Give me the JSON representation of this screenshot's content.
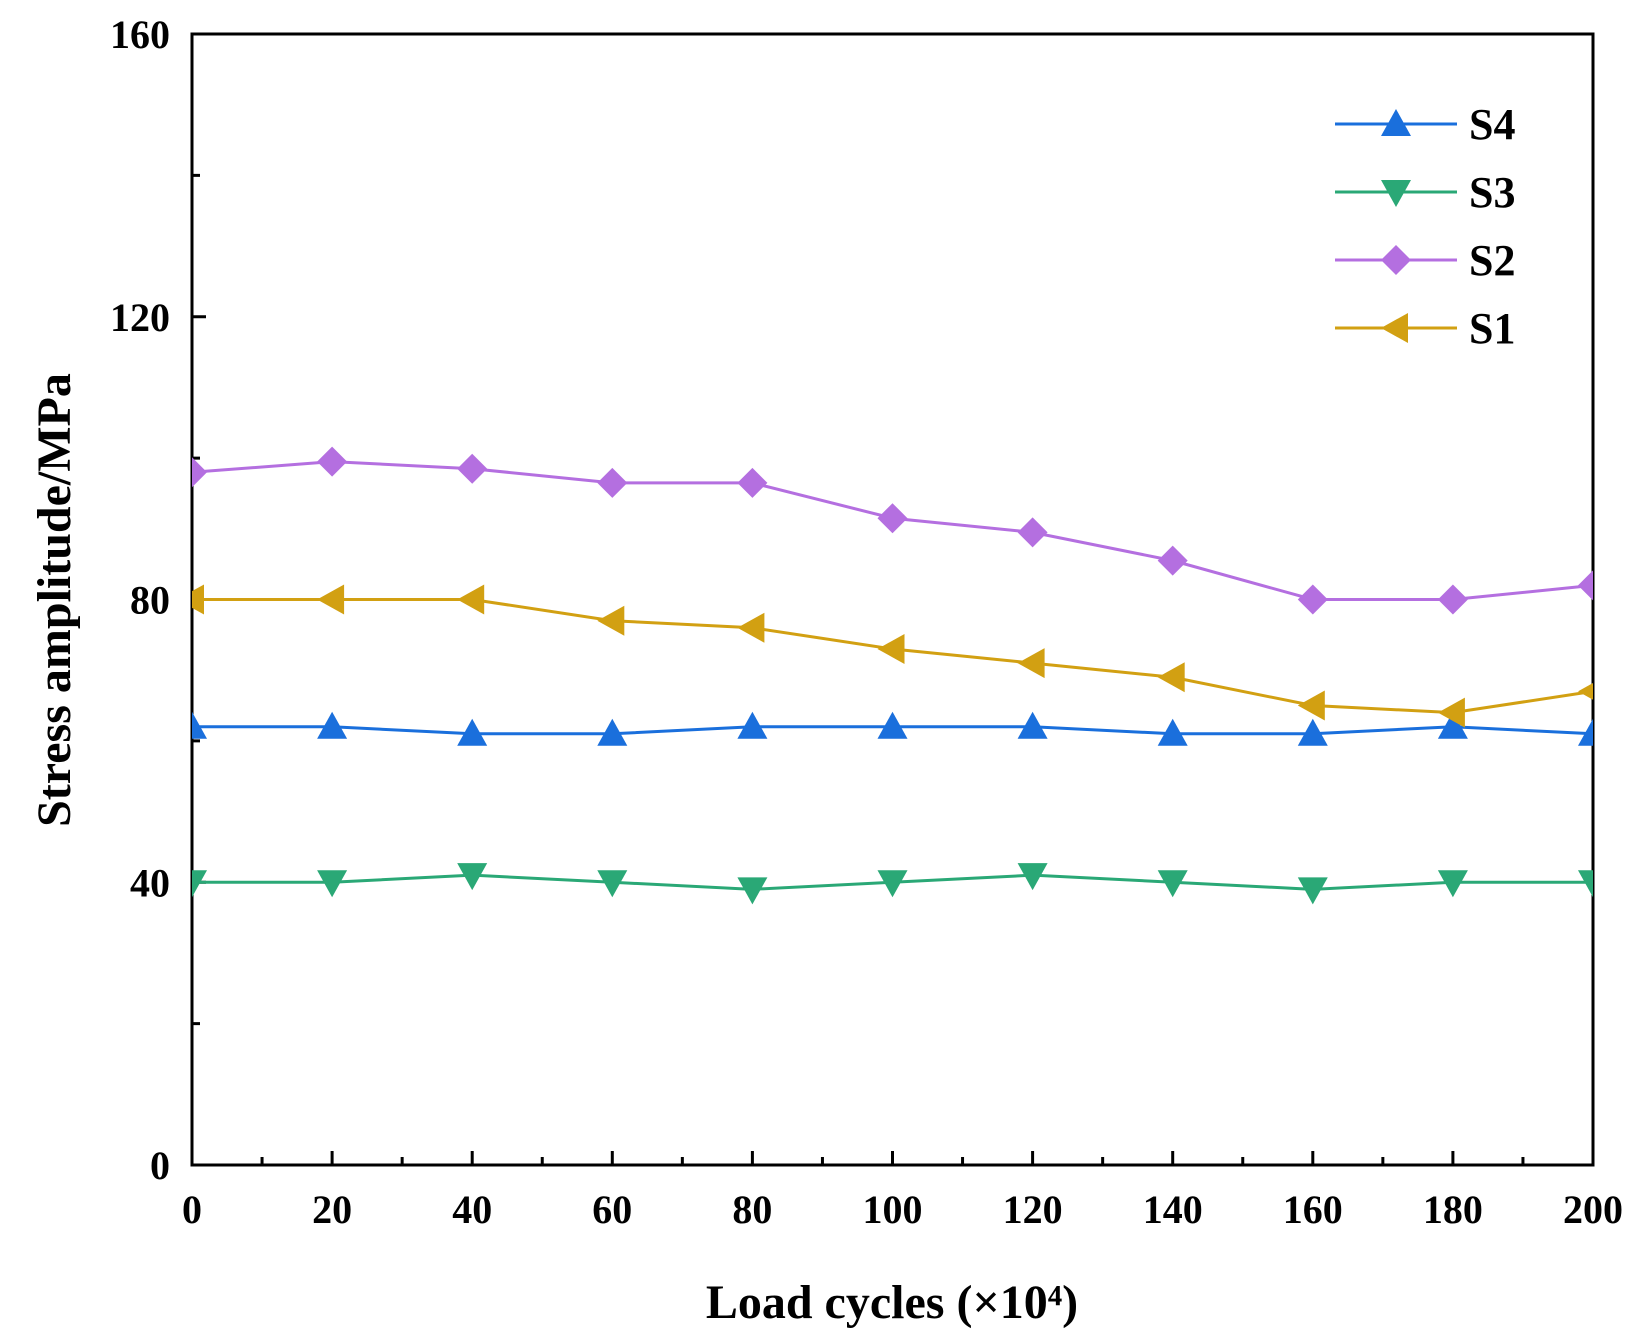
{
  "chart_data": {
    "type": "line",
    "title": "",
    "xlabel": "Load cycles (×10⁴)",
    "ylabel": "Stress amplitude/MPa",
    "xlim": [
      0,
      200
    ],
    "ylim": [
      0,
      160
    ],
    "xticks": [
      0,
      20,
      40,
      60,
      80,
      100,
      120,
      140,
      160,
      180,
      200
    ],
    "yticks": [
      0,
      40,
      80,
      120,
      160
    ],
    "x": [
      0,
      20,
      40,
      60,
      80,
      100,
      120,
      140,
      160,
      180,
      200
    ],
    "legend_position": "top-right",
    "series": [
      {
        "name": "S4",
        "marker": "triangle-up",
        "color": "#1a6fdc",
        "values": [
          62,
          62,
          61,
          61,
          62,
          62,
          62,
          61,
          61,
          62,
          61
        ]
      },
      {
        "name": "S3",
        "marker": "triangle-down",
        "color": "#2aa876",
        "values": [
          40,
          40,
          41,
          40,
          39,
          40,
          41,
          40,
          39,
          40,
          40
        ]
      },
      {
        "name": "S2",
        "marker": "diamond",
        "color": "#b46fe0",
        "values": [
          98,
          99.5,
          98.5,
          96.5,
          96.5,
          91.5,
          89.5,
          85.5,
          80,
          80,
          82
        ]
      },
      {
        "name": "S1",
        "marker": "triangle-left",
        "color": "#d2a012",
        "values": [
          80,
          80,
          80,
          77,
          76,
          73,
          71,
          69,
          65,
          64,
          67
        ]
      }
    ]
  }
}
